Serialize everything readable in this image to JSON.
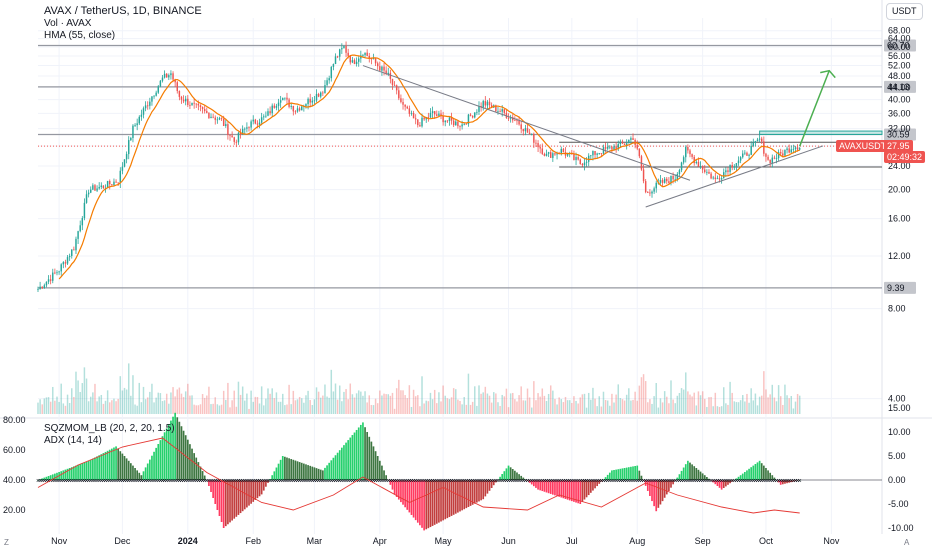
{
  "header": {
    "symbol_line": "AVAX / TetherUS, 1D, BINANCE",
    "vol_line": "Vol · AVAX",
    "hma_line": "HMA (55, close)",
    "osc1_line": "SQZMOM_LB (20, 2, 20, 1.5)",
    "osc2_line": "ADX (14, 14)"
  },
  "currency_button": "USDT",
  "corner_left": "Z",
  "corner_right": "A",
  "price_tags": {
    "symbol": "AVAXUSDT",
    "price": "27.95",
    "countdown": "02:49:32",
    "levels": [
      "60.70",
      "44.13",
      "30.59",
      "9.39"
    ]
  },
  "colors": {
    "up": "#26a69a",
    "down": "#ef5350",
    "hma": "#f57c00",
    "trend": "#787b86",
    "projection": "#4caf50",
    "adx": "#e53935",
    "level": "#9598a1"
  },
  "chart_data": [
    {
      "type": "candlestick",
      "title": "AVAX / TetherUS, 1D, BINANCE",
      "yscale": "log",
      "ylim": [
        3.5,
        75
      ],
      "y_ticks": [
        "68.00",
        "64.00",
        "60.00",
        "56.00",
        "52.00",
        "48.00",
        "44.00",
        "40.00",
        "36.00",
        "32.00",
        "28.00",
        "24.00",
        "20.00",
        "16.00",
        "12.00",
        "8.00",
        "4.00"
      ],
      "x_ticks": [
        "Nov",
        "Dec",
        "2024",
        "Feb",
        "Mar",
        "Apr",
        "May",
        "Jun",
        "Jul",
        "Aug",
        "Sep",
        "Oct",
        "Nov"
      ],
      "horizontal_levels": [
        60.7,
        44.13,
        30.59,
        9.39
      ],
      "current_price": 27.95,
      "pattern_levels": [
        28.8,
        23.8
      ],
      "price_path": [
        {
          "date": "2023-10-22",
          "close": 9.3
        },
        {
          "date": "2023-11-01",
          "close": 10.8
        },
        {
          "date": "2023-11-08",
          "close": 12.8
        },
        {
          "date": "2023-11-15",
          "close": 20.0
        },
        {
          "date": "2023-11-22",
          "close": 20.5
        },
        {
          "date": "2023-11-29",
          "close": 21.5
        },
        {
          "date": "2023-12-06",
          "close": 32.0
        },
        {
          "date": "2023-12-13",
          "close": 39.0
        },
        {
          "date": "2023-12-20",
          "close": 47.0
        },
        {
          "date": "2023-12-24",
          "close": 49.0
        },
        {
          "date": "2023-12-28",
          "close": 41.0
        },
        {
          "date": "2024-01-04",
          "close": 38.0
        },
        {
          "date": "2024-01-10",
          "close": 36.0
        },
        {
          "date": "2024-01-17",
          "close": 34.0
        },
        {
          "date": "2024-01-23",
          "close": 29.0
        },
        {
          "date": "2024-01-30",
          "close": 33.0
        },
        {
          "date": "2024-02-07",
          "close": 35.0
        },
        {
          "date": "2024-02-14",
          "close": 41.0
        },
        {
          "date": "2024-02-21",
          "close": 37.0
        },
        {
          "date": "2024-02-28",
          "close": 40.0
        },
        {
          "date": "2024-03-05",
          "close": 43.0
        },
        {
          "date": "2024-03-11",
          "close": 55.0
        },
        {
          "date": "2024-03-15",
          "close": 60.0
        },
        {
          "date": "2024-03-19",
          "close": 53.0
        },
        {
          "date": "2024-03-24",
          "close": 58.0
        },
        {
          "date": "2024-03-31",
          "close": 52.0
        },
        {
          "date": "2024-04-05",
          "close": 48.0
        },
        {
          "date": "2024-04-12",
          "close": 38.0
        },
        {
          "date": "2024-04-19",
          "close": 33.0
        },
        {
          "date": "2024-04-26",
          "close": 36.0
        },
        {
          "date": "2024-05-03",
          "close": 34.0
        },
        {
          "date": "2024-05-10",
          "close": 33.0
        },
        {
          "date": "2024-05-20",
          "close": 39.0
        },
        {
          "date": "2024-05-27",
          "close": 37.0
        },
        {
          "date": "2024-06-05",
          "close": 34.0
        },
        {
          "date": "2024-06-12",
          "close": 30.0
        },
        {
          "date": "2024-06-19",
          "close": 26.0
        },
        {
          "date": "2024-06-26",
          "close": 27.0
        },
        {
          "date": "2024-07-05",
          "close": 24.5
        },
        {
          "date": "2024-07-12",
          "close": 26.5
        },
        {
          "date": "2024-07-19",
          "close": 27.5
        },
        {
          "date": "2024-07-26",
          "close": 28.5
        },
        {
          "date": "2024-07-30",
          "close": 30.0
        },
        {
          "date": "2024-08-02",
          "close": 25.5
        },
        {
          "date": "2024-08-05",
          "close": 19.5
        },
        {
          "date": "2024-08-12",
          "close": 21.0
        },
        {
          "date": "2024-08-19",
          "close": 22.0
        },
        {
          "date": "2024-08-24",
          "close": 27.0
        },
        {
          "date": "2024-08-31",
          "close": 24.0
        },
        {
          "date": "2024-09-07",
          "close": 21.5
        },
        {
          "date": "2024-09-14",
          "close": 24.0
        },
        {
          "date": "2024-09-21",
          "close": 26.0
        },
        {
          "date": "2024-09-28",
          "close": 29.5
        },
        {
          "date": "2024-10-02",
          "close": 25.0
        },
        {
          "date": "2024-10-07",
          "close": 26.0
        },
        {
          "date": "2024-10-14",
          "close": 28.0
        },
        {
          "date": "2024-10-17",
          "close": 27.95
        }
      ],
      "projection": {
        "from": {
          "date": "2024-10-17",
          "price": 27.95
        },
        "to": {
          "date": "2024-10-31",
          "price": 50.0
        }
      }
    },
    {
      "type": "histogram",
      "title": "SQZMOM_LB (20, 2, 20, 1.5)",
      "ylim": [
        -13,
        15
      ],
      "y_ticks_right": [
        "15.00",
        "10.00",
        "5.00",
        "0.00",
        "-5.00",
        "-10.00"
      ],
      "y_ticks_left": [
        "80.00",
        "60.00",
        "40.00",
        "20.00"
      ],
      "momentum_path": [
        {
          "date": "2023-10-22",
          "value": 0
        },
        {
          "date": "2023-11-15",
          "value": 4
        },
        {
          "date": "2023-11-28",
          "value": 7
        },
        {
          "date": "2023-12-10",
          "value": 1
        },
        {
          "date": "2023-12-26",
          "value": 14
        },
        {
          "date": "2024-01-10",
          "value": 0
        },
        {
          "date": "2024-01-18",
          "value": -10
        },
        {
          "date": "2024-02-05",
          "value": -3
        },
        {
          "date": "2024-02-15",
          "value": 5
        },
        {
          "date": "2024-03-05",
          "value": 2
        },
        {
          "date": "2024-03-24",
          "value": 12
        },
        {
          "date": "2024-04-08",
          "value": -3
        },
        {
          "date": "2024-04-22",
          "value": -10.5
        },
        {
          "date": "2024-05-20",
          "value": -4
        },
        {
          "date": "2024-06-01",
          "value": 3
        },
        {
          "date": "2024-06-15",
          "value": -2
        },
        {
          "date": "2024-07-05",
          "value": -5
        },
        {
          "date": "2024-07-20",
          "value": 2
        },
        {
          "date": "2024-08-01",
          "value": 3
        },
        {
          "date": "2024-08-10",
          "value": -6.5
        },
        {
          "date": "2024-08-25",
          "value": 4
        },
        {
          "date": "2024-09-10",
          "value": -2
        },
        {
          "date": "2024-09-28",
          "value": 4
        },
        {
          "date": "2024-10-08",
          "value": -1
        },
        {
          "date": "2024-10-17",
          "value": 0
        }
      ],
      "adx_path": [
        {
          "date": "2023-10-22",
          "value": 35
        },
        {
          "date": "2023-11-10",
          "value": 50
        },
        {
          "date": "2023-12-01",
          "value": 62
        },
        {
          "date": "2023-12-20",
          "value": 68
        },
        {
          "date": "2024-01-10",
          "value": 45
        },
        {
          "date": "2024-02-05",
          "value": 25
        },
        {
          "date": "2024-02-20",
          "value": 20
        },
        {
          "date": "2024-03-10",
          "value": 30
        },
        {
          "date": "2024-03-24",
          "value": 42
        },
        {
          "date": "2024-04-15",
          "value": 25
        },
        {
          "date": "2024-05-01",
          "value": 35
        },
        {
          "date": "2024-05-20",
          "value": 22
        },
        {
          "date": "2024-06-10",
          "value": 20
        },
        {
          "date": "2024-06-25",
          "value": 30
        },
        {
          "date": "2024-07-15",
          "value": 22
        },
        {
          "date": "2024-08-05",
          "value": 38
        },
        {
          "date": "2024-08-20",
          "value": 30
        },
        {
          "date": "2024-09-10",
          "value": 22
        },
        {
          "date": "2024-09-25",
          "value": 18
        },
        {
          "date": "2024-10-05",
          "value": 20
        },
        {
          "date": "2024-10-17",
          "value": 18
        }
      ]
    }
  ]
}
